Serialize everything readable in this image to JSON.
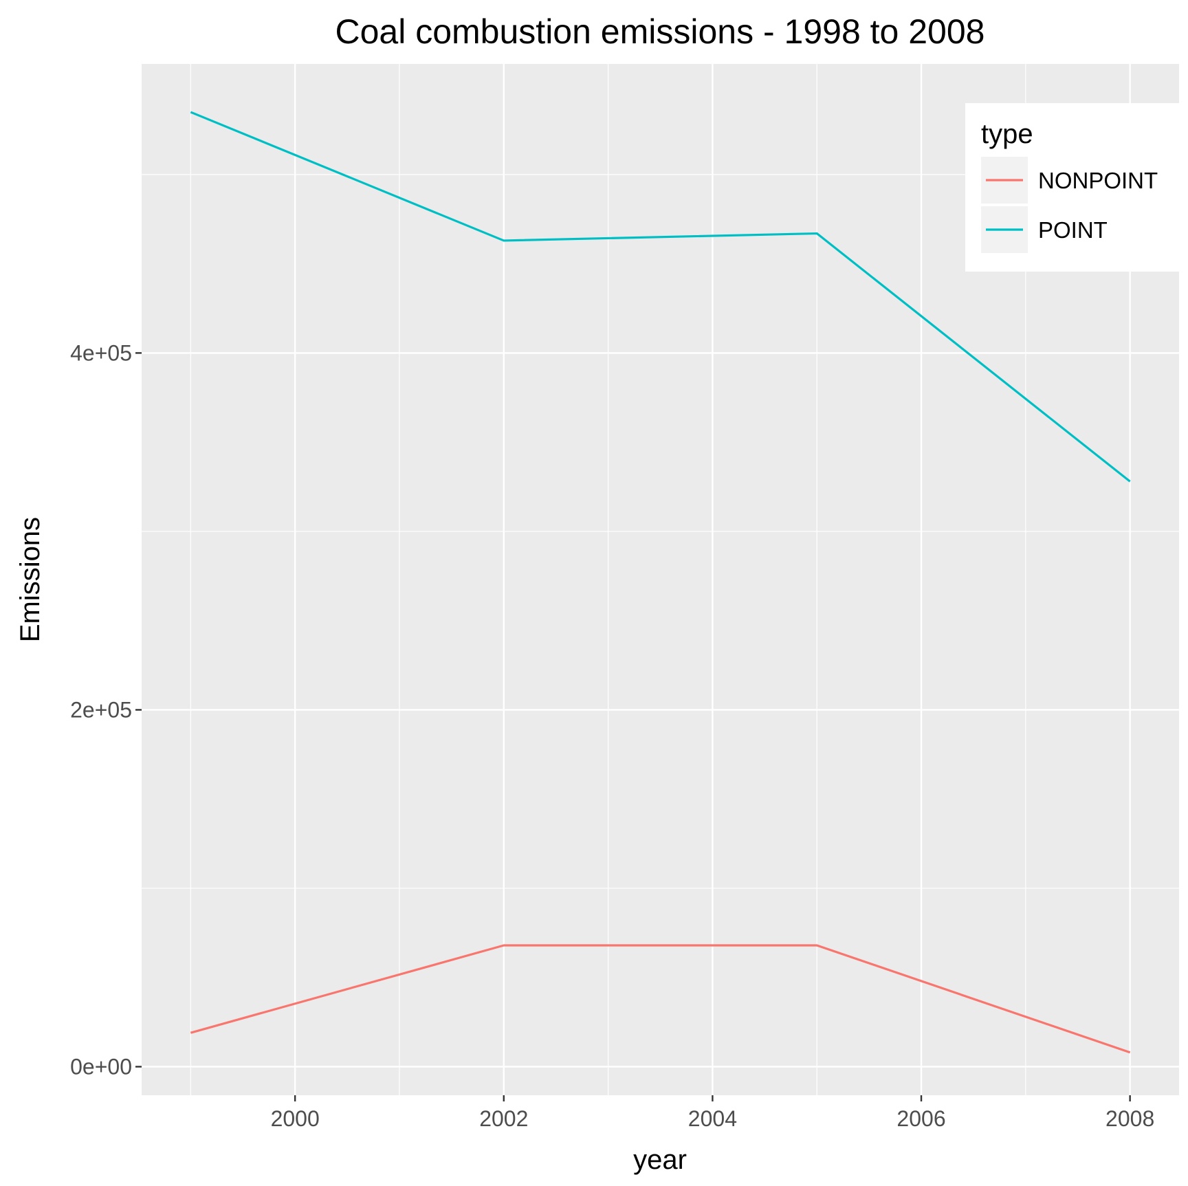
{
  "chart_data": {
    "type": "line",
    "title": "Coal combustion emissions - 1998 to 2008",
    "xlabel": "year",
    "ylabel": "Emissions",
    "x": [
      1999,
      2002,
      2005,
      2008
    ],
    "series": [
      {
        "name": "NONPOINT",
        "color": "#F8766D",
        "values": [
          19000,
          68000,
          68000,
          8000
        ]
      },
      {
        "name": "POINT",
        "color": "#00BFC4",
        "values": [
          535000,
          463000,
          467000,
          328000
        ]
      }
    ],
    "xlim": [
      1998.53,
      2008.47
    ],
    "ylim": [
      -16000,
      562000
    ],
    "x_ticks": [
      2000,
      2002,
      2004,
      2006,
      2008
    ],
    "x_tick_labels": [
      "2000",
      "2002",
      "2004",
      "2006",
      "2008"
    ],
    "y_ticks": [
      0,
      200000,
      400000
    ],
    "y_tick_labels": [
      "0e+00",
      "2e+05",
      "4e+05"
    ],
    "legend": {
      "title": "type",
      "position": "top-right"
    },
    "grid": true,
    "background": "#EBEBEB"
  }
}
